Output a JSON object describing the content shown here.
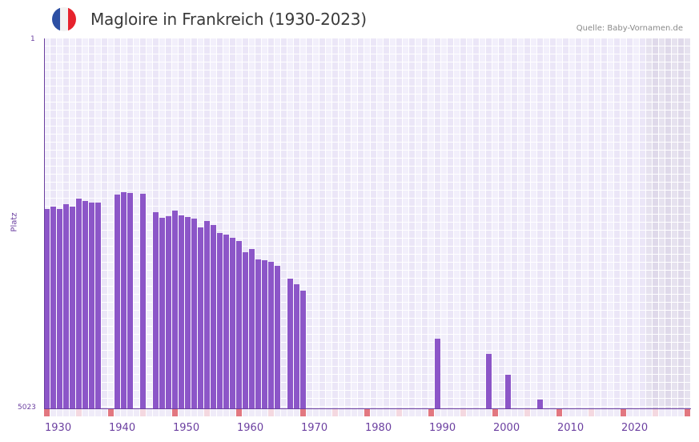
{
  "header": {
    "title": "Magloire in Frankreich (1930-2023)",
    "source": "Quelle: Baby-Vornamen.de",
    "flag": {
      "name": "france-flag",
      "colors": [
        "#2c4fa3",
        "#f2f2f2",
        "#e6232d"
      ]
    }
  },
  "colors": {
    "bar": "#8c56c8",
    "axis": "#6b3fa0",
    "decade_marker": "#e27780",
    "half_decade_marker": "#f4d8e0",
    "future_shade": "#dfd9ea"
  },
  "axis": {
    "y_top_label": "1",
    "y_bottom_label": "5023",
    "y_title": "Platz",
    "x_labels": [
      "1930",
      "1940",
      "1950",
      "1960",
      "1970",
      "1980",
      "1990",
      "2000",
      "2010",
      "2020"
    ]
  },
  "chart_data": {
    "type": "bar",
    "title": "Magloire in Frankreich (1930-2023)",
    "xlabel": "",
    "ylabel": "Platz",
    "ylim": [
      5023,
      1
    ],
    "y_inverted": true,
    "x_range": [
      1930,
      2030
    ],
    "shaded_future_range": [
      2024,
      2030
    ],
    "grid": true,
    "legend": null,
    "categories": [
      1930,
      1931,
      1932,
      1933,
      1934,
      1935,
      1936,
      1937,
      1938,
      1941,
      1942,
      1943,
      1945,
      1947,
      1948,
      1949,
      1950,
      1951,
      1952,
      1953,
      1954,
      1955,
      1956,
      1957,
      1958,
      1959,
      1960,
      1961,
      1962,
      1963,
      1964,
      1965,
      1966,
      1968,
      1969,
      1970,
      1991,
      1999,
      2002,
      2007
    ],
    "values": [
      2315,
      2283,
      2315,
      2250,
      2283,
      2173,
      2206,
      2228,
      2228,
      2119,
      2086,
      2097,
      2108,
      2359,
      2435,
      2414,
      2337,
      2403,
      2425,
      2446,
      2566,
      2479,
      2534,
      2643,
      2665,
      2708,
      2752,
      2905,
      2861,
      3003,
      3014,
      3036,
      3091,
      3265,
      3342,
      3429,
      4073,
      4280,
      4564,
      4903
    ]
  }
}
